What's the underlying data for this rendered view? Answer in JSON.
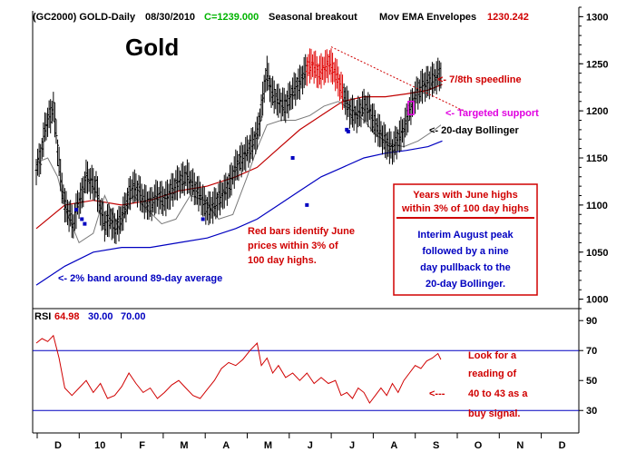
{
  "header": {
    "symbol": "(GC2000) GOLD-Daily",
    "date": "08/30/2010",
    "close": "C=1239.000",
    "study": "Seasonal breakout",
    "envelope_label": "Mov EMA Envelopes",
    "envelope_value": "1230.242"
  },
  "chart_data": [
    {
      "type": "line",
      "title": "Gold",
      "x_labels": [
        "D",
        "10",
        "F",
        "M",
        "A",
        "M",
        "J",
        "J",
        "A",
        "S",
        "O",
        "N",
        "D"
      ],
      "ylim": [
        990,
        1310
      ],
      "yticks": [
        1000,
        1050,
        1100,
        1150,
        1200,
        1250,
        1300
      ],
      "close_path": [
        [
          0,
          1140
        ],
        [
          3,
          1150
        ],
        [
          6,
          1180
        ],
        [
          8,
          1190
        ],
        [
          10,
          1195
        ],
        [
          12,
          1205
        ],
        [
          14,
          1175
        ],
        [
          17,
          1130
        ],
        [
          20,
          1100
        ],
        [
          23,
          1090
        ],
        [
          26,
          1080
        ],
        [
          29,
          1100
        ],
        [
          32,
          1110
        ],
        [
          35,
          1130
        ],
        [
          38,
          1125
        ],
        [
          42,
          1120
        ],
        [
          45,
          1095
        ],
        [
          48,
          1080
        ],
        [
          52,
          1085
        ],
        [
          55,
          1075
        ],
        [
          58,
          1080
        ],
        [
          62,
          1095
        ],
        [
          65,
          1110
        ],
        [
          68,
          1120
        ],
        [
          72,
          1115
        ],
        [
          75,
          1105
        ],
        [
          80,
          1100
        ],
        [
          85,
          1110
        ],
        [
          90,
          1105
        ],
        [
          95,
          1115
        ],
        [
          100,
          1125
        ],
        [
          106,
          1130
        ],
        [
          110,
          1120
        ],
        [
          115,
          1110
        ],
        [
          120,
          1095
        ],
        [
          125,
          1100
        ],
        [
          130,
          1110
        ],
        [
          135,
          1120
        ],
        [
          140,
          1140
        ],
        [
          145,
          1150
        ],
        [
          150,
          1160
        ],
        [
          155,
          1175
        ],
        [
          158,
          1200
        ],
        [
          160,
          1225
        ],
        [
          162,
          1240
        ],
        [
          165,
          1220
        ],
        [
          170,
          1210
        ],
        [
          175,
          1205
        ],
        [
          180,
          1220
        ],
        [
          185,
          1230
        ],
        [
          190,
          1245
        ],
        [
          194,
          1250
        ],
        [
          198,
          1240
        ],
        [
          202,
          1245
        ],
        [
          206,
          1250
        ],
        [
          210,
          1240
        ],
        [
          215,
          1220
        ],
        [
          220,
          1200
        ],
        [
          225,
          1195
        ],
        [
          230,
          1205
        ],
        [
          234,
          1200
        ],
        [
          238,
          1185
        ],
        [
          242,
          1175
        ],
        [
          246,
          1165
        ],
        [
          250,
          1160
        ],
        [
          254,
          1170
        ],
        [
          258,
          1180
        ],
        [
          262,
          1200
        ],
        [
          266,
          1215
        ],
        [
          270,
          1225
        ],
        [
          275,
          1230
        ],
        [
          280,
          1235
        ],
        [
          284,
          1240
        ]
      ],
      "red_bars_note": "Red bars identify June prices within 3% of 100 day highs.",
      "ema_upper": [
        [
          0,
          1075
        ],
        [
          20,
          1100
        ],
        [
          40,
          1105
        ],
        [
          60,
          1100
        ],
        [
          80,
          1105
        ],
        [
          100,
          1115
        ],
        [
          120,
          1120
        ],
        [
          140,
          1130
        ],
        [
          155,
          1140
        ],
        [
          170,
          1160
        ],
        [
          185,
          1180
        ],
        [
          200,
          1195
        ],
        [
          215,
          1210
        ],
        [
          230,
          1215
        ],
        [
          245,
          1215
        ],
        [
          260,
          1218
        ],
        [
          275,
          1222
        ],
        [
          285,
          1228
        ]
      ],
      "ema_lower": [
        [
          0,
          1015
        ],
        [
          20,
          1035
        ],
        [
          40,
          1050
        ],
        [
          60,
          1055
        ],
        [
          80,
          1055
        ],
        [
          100,
          1060
        ],
        [
          120,
          1065
        ],
        [
          140,
          1075
        ],
        [
          155,
          1085
        ],
        [
          170,
          1100
        ],
        [
          185,
          1115
        ],
        [
          200,
          1130
        ],
        [
          215,
          1140
        ],
        [
          230,
          1150
        ],
        [
          245,
          1155
        ],
        [
          260,
          1158
        ],
        [
          275,
          1162
        ],
        [
          285,
          1168
        ]
      ],
      "bollinger": [
        [
          0,
          1145
        ],
        [
          8,
          1150
        ],
        [
          15,
          1130
        ],
        [
          22,
          1090
        ],
        [
          30,
          1060
        ],
        [
          40,
          1070
        ],
        [
          48,
          1110
        ],
        [
          58,
          1075
        ],
        [
          68,
          1110
        ],
        [
          78,
          1095
        ],
        [
          88,
          1080
        ],
        [
          98,
          1085
        ],
        [
          108,
          1110
        ],
        [
          118,
          1105
        ],
        [
          128,
          1085
        ],
        [
          138,
          1090
        ],
        [
          148,
          1130
        ],
        [
          155,
          1160
        ],
        [
          162,
          1185
        ],
        [
          172,
          1190
        ],
        [
          182,
          1190
        ],
        [
          192,
          1195
        ],
        [
          202,
          1205
        ],
        [
          212,
          1210
        ],
        [
          222,
          1200
        ],
        [
          230,
          1190
        ],
        [
          238,
          1175
        ],
        [
          248,
          1165
        ],
        [
          258,
          1162
        ],
        [
          268,
          1168
        ],
        [
          278,
          1178
        ],
        [
          284,
          1185
        ]
      ],
      "speedline_start": [
        [
          207,
          1268
        ],
        [
          300,
          1200
        ]
      ],
      "targeted_support_box": [
        263,
        1210,
        1196
      ],
      "annotations": {
        "speedline": "<- 7/8th speedline",
        "targeted_support": "<- Targeted support",
        "bollinger": "<- 20-day Bollinger",
        "band": "<- 2% band around 89-day average",
        "red_bars": [
          "Red bars identify June",
          "prices within 3% of",
          "100 day highs."
        ],
        "box": [
          "Years with June highs",
          "within 3% of 100 day highs",
          "Interim August peak",
          "followed by a nine",
          "day pullback to the",
          "20-day Bollinger."
        ]
      }
    },
    {
      "type": "line",
      "title": "RSI",
      "ylim": [
        15,
        98
      ],
      "yticks": [
        30,
        50,
        70,
        90
      ],
      "value": "64.98",
      "levels": [
        30,
        70
      ],
      "levels_labels": [
        "30.00",
        "70.00"
      ],
      "series": [
        [
          0,
          75
        ],
        [
          4,
          78
        ],
        [
          8,
          76
        ],
        [
          12,
          80
        ],
        [
          16,
          65
        ],
        [
          20,
          45
        ],
        [
          25,
          40
        ],
        [
          30,
          45
        ],
        [
          35,
          50
        ],
        [
          40,
          42
        ],
        [
          45,
          48
        ],
        [
          50,
          38
        ],
        [
          55,
          40
        ],
        [
          60,
          46
        ],
        [
          65,
          55
        ],
        [
          70,
          48
        ],
        [
          75,
          42
        ],
        [
          80,
          45
        ],
        [
          85,
          38
        ],
        [
          90,
          42
        ],
        [
          95,
          47
        ],
        [
          100,
          50
        ],
        [
          105,
          45
        ],
        [
          110,
          40
        ],
        [
          115,
          38
        ],
        [
          120,
          44
        ],
        [
          125,
          50
        ],
        [
          130,
          58
        ],
        [
          135,
          62
        ],
        [
          140,
          60
        ],
        [
          145,
          64
        ],
        [
          150,
          70
        ],
        [
          155,
          75
        ],
        [
          158,
          60
        ],
        [
          162,
          65
        ],
        [
          166,
          55
        ],
        [
          170,
          60
        ],
        [
          175,
          52
        ],
        [
          180,
          55
        ],
        [
          185,
          50
        ],
        [
          190,
          55
        ],
        [
          195,
          48
        ],
        [
          200,
          52
        ],
        [
          205,
          48
        ],
        [
          210,
          50
        ],
        [
          214,
          40
        ],
        [
          218,
          42
        ],
        [
          222,
          38
        ],
        [
          226,
          45
        ],
        [
          230,
          42
        ],
        [
          234,
          35
        ],
        [
          238,
          40
        ],
        [
          242,
          45
        ],
        [
          246,
          40
        ],
        [
          250,
          48
        ],
        [
          254,
          42
        ],
        [
          258,
          50
        ],
        [
          262,
          55
        ],
        [
          266,
          60
        ],
        [
          270,
          58
        ],
        [
          274,
          63
        ],
        [
          278,
          65
        ],
        [
          282,
          68
        ],
        [
          284,
          64
        ]
      ],
      "annotation": [
        "Look for a",
        "reading of",
        "40 to 43 as a",
        "buy signal."
      ],
      "arrow": "<---"
    }
  ]
}
